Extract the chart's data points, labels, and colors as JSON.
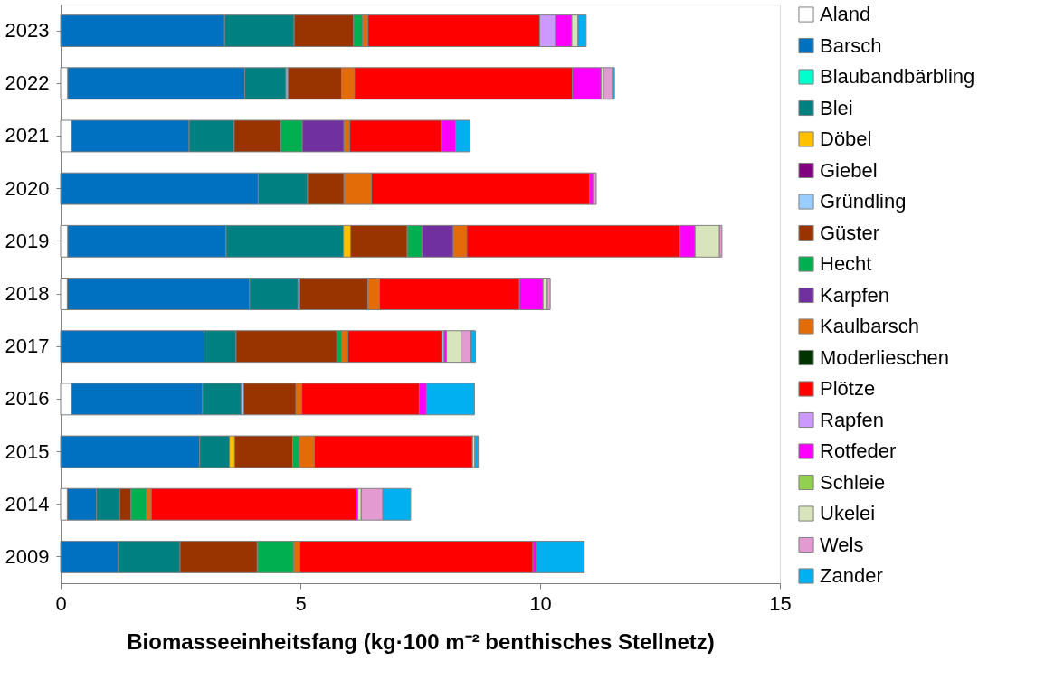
{
  "chart_data": {
    "type": "bar",
    "orientation": "horizontal",
    "stacked": true,
    "categories": [
      "2023",
      "2022",
      "2021",
      "2020",
      "2019",
      "2018",
      "2017",
      "2016",
      "2015",
      "2014",
      "2009"
    ],
    "xlabel": "Biomasseeinheitsfang (kg·100 m⁻² benthisches Stellnetz)",
    "xlim": [
      0,
      15
    ],
    "xticks": [
      0,
      5,
      10,
      15
    ],
    "grid": false,
    "legend": "right",
    "series": [
      {
        "name": "Aland",
        "color": "#ffffff",
        "values": [
          null,
          0.15,
          0.23,
          null,
          0.15,
          0.14,
          null,
          0.23,
          null,
          0.14,
          null
        ]
      },
      {
        "name": "Barsch",
        "color": "#0070c0",
        "values": [
          3.42,
          3.69,
          2.45,
          4.12,
          3.3,
          3.8,
          2.99,
          2.73,
          2.9,
          0.61,
          1.2
        ]
      },
      {
        "name": "Blaubandbärbling",
        "color": "#00ffcc",
        "values": [
          null,
          null,
          null,
          null,
          null,
          null,
          null,
          null,
          null,
          null,
          null
        ]
      },
      {
        "name": "Blei",
        "color": "#008080",
        "values": [
          1.45,
          0.86,
          0.94,
          1.03,
          2.45,
          1.01,
          0.67,
          0.81,
          0.62,
          0.48,
          1.29
        ]
      },
      {
        "name": "Döbel",
        "color": "#ffc000",
        "values": [
          null,
          null,
          null,
          null,
          0.15,
          null,
          null,
          null,
          0.11,
          null,
          null
        ]
      },
      {
        "name": "Giebel",
        "color": "#800080",
        "values": [
          null,
          null,
          null,
          null,
          null,
          null,
          null,
          null,
          null,
          null,
          null
        ]
      },
      {
        "name": "Gründling",
        "color": "#99ccff",
        "values": [
          null,
          0.04,
          null,
          null,
          null,
          0.04,
          null,
          0.05,
          null,
          null,
          null
        ]
      },
      {
        "name": "Güster",
        "color": "#993300",
        "values": [
          1.24,
          1.12,
          0.97,
          0.76,
          1.18,
          1.42,
          2.1,
          1.09,
          1.21,
          0.24,
          1.61
        ]
      },
      {
        "name": "Hecht",
        "color": "#00b050",
        "values": [
          0.19,
          null,
          0.45,
          null,
          0.31,
          null,
          0.1,
          null,
          0.14,
          0.32,
          0.76
        ]
      },
      {
        "name": "Karpfen",
        "color": "#7030a0",
        "values": [
          null,
          null,
          0.87,
          null,
          0.65,
          null,
          null,
          null,
          null,
          null,
          null
        ]
      },
      {
        "name": "Kaulbarsch",
        "color": "#e36c09",
        "values": [
          0.11,
          0.27,
          0.12,
          0.57,
          0.28,
          0.24,
          0.13,
          0.12,
          0.31,
          0.1,
          0.13
        ]
      },
      {
        "name": "Moderlieschen",
        "color": "#003300",
        "values": [
          null,
          null,
          null,
          null,
          null,
          null,
          null,
          null,
          null,
          null,
          null
        ]
      },
      {
        "name": "Plötze",
        "color": "#ff0000",
        "values": [
          3.58,
          4.54,
          1.91,
          4.55,
          4.45,
          2.92,
          1.96,
          2.45,
          3.3,
          4.27,
          4.86
        ]
      },
      {
        "name": "Rapfen",
        "color": "#cc99ff",
        "values": [
          0.33,
          null,
          null,
          null,
          null,
          null,
          0.05,
          null,
          null,
          null,
          null
        ]
      },
      {
        "name": "Rotfeder",
        "color": "#ff00ff",
        "values": [
          0.34,
          0.6,
          0.3,
          0.07,
          0.31,
          0.49,
          0.05,
          0.15,
          null,
          0.04,
          0.07
        ]
      },
      {
        "name": "Schleie",
        "color": "#92d050",
        "values": [
          null,
          null,
          null,
          null,
          null,
          null,
          null,
          null,
          null,
          null,
          null
        ]
      },
      {
        "name": "Ukelei",
        "color": "#d8e4bc",
        "values": [
          0.13,
          0.05,
          null,
          null,
          0.51,
          0.09,
          0.3,
          null,
          0.05,
          0.07,
          null
        ]
      },
      {
        "name": "Wels",
        "color": "#e29ad0",
        "values": [
          null,
          0.19,
          null,
          0.07,
          0.05,
          0.06,
          0.21,
          null,
          null,
          0.45,
          null
        ]
      },
      {
        "name": "Zander",
        "color": "#00b0f0",
        "values": [
          0.17,
          0.04,
          0.3,
          null,
          null,
          null,
          0.09,
          1.0,
          0.07,
          0.58,
          1.0
        ]
      }
    ]
  }
}
